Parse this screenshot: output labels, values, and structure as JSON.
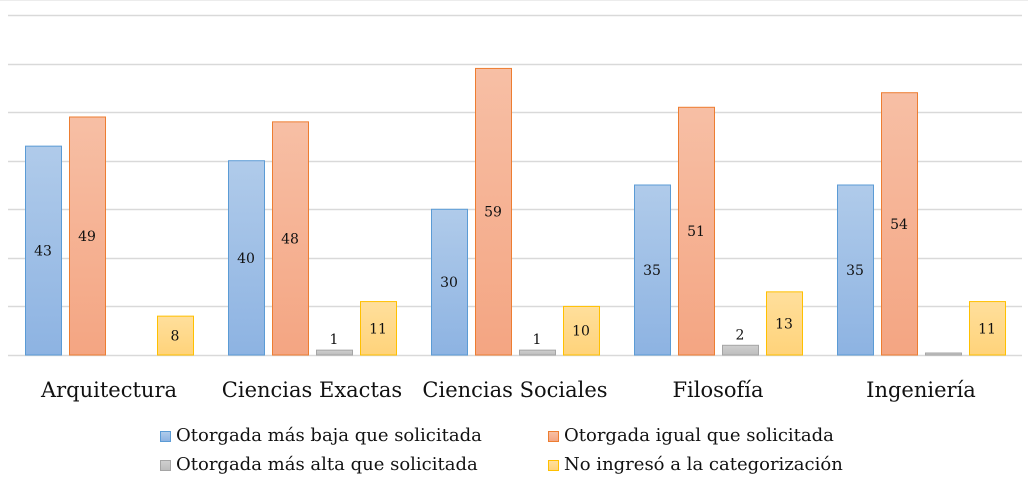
{
  "chart_data": {
    "type": "bar",
    "title": "",
    "xlabel": "",
    "ylabel": "",
    "ylim": [
      0,
      70
    ],
    "grid": true,
    "gridline_step": 10,
    "y_tick_labels_visible": false,
    "legend_position": "bottom",
    "categories": [
      "Arquitectura",
      "Ciencias Exactas",
      "Ciencias Sociales",
      "Filosofía",
      "Ingeniería"
    ],
    "series": [
      {
        "name": "Otorgada más baja que solicitada",
        "color_top": "#b0cbea",
        "color_bottom": "#8db3e2",
        "border": "#5b9bd5",
        "values": [
          43,
          40,
          30,
          35,
          35
        ],
        "labels": [
          "43",
          "40",
          "30",
          "35",
          "35"
        ]
      },
      {
        "name": "Otorgada igual que solicitada",
        "color_top": "#f7bfa5",
        "color_bottom": "#f4a582",
        "border": "#ed7d31",
        "values": [
          49,
          48,
          59,
          51,
          54
        ],
        "labels": [
          "49",
          "48",
          "59",
          "51",
          "54"
        ]
      },
      {
        "name": "Otorgada más alta que solicitada",
        "color_top": "#cfcfcf",
        "color_bottom": "#bdbdbd",
        "border": "#a5a5a5",
        "values": [
          0,
          1,
          1,
          2,
          0.3
        ],
        "labels": [
          "",
          "1",
          "1",
          "2",
          ""
        ]
      },
      {
        "name": "No ingresó a la categorización",
        "color_top": "#ffdf9c",
        "color_bottom": "#ffd37a",
        "border": "#ffc000",
        "values": [
          8,
          11,
          10,
          13,
          11
        ],
        "labels": [
          "8",
          "11",
          "10",
          "13",
          "11"
        ]
      }
    ]
  }
}
